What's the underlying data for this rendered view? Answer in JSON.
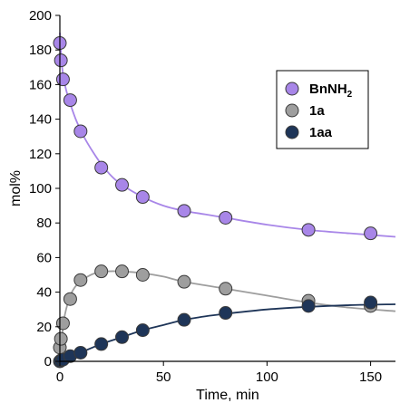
{
  "chart_data": {
    "type": "scatter",
    "xlabel": "Time, min",
    "ylabel": "mol%",
    "xlim": [
      0,
      162
    ],
    "ylim": [
      0,
      200
    ],
    "xticks": [
      0,
      50,
      100,
      150
    ],
    "yticks": [
      0,
      20,
      40,
      60,
      80,
      100,
      120,
      140,
      160,
      180,
      200
    ],
    "grid": false,
    "legend_position": "top-right",
    "series": [
      {
        "name": "BnNH2",
        "label_main": "BnNH",
        "label_sub": "2",
        "color": "#a886e8",
        "x": [
          0,
          0.5,
          1.5,
          5,
          10,
          20,
          30,
          40,
          60,
          80,
          120,
          150
        ],
        "y": [
          184,
          174,
          163,
          151,
          133,
          112,
          102,
          95,
          87,
          83,
          76,
          74
        ],
        "fit": [
          [
            0,
            190
          ],
          [
            1,
            171
          ],
          [
            2,
            163
          ],
          [
            3,
            157
          ],
          [
            5,
            149
          ],
          [
            8,
            139
          ],
          [
            12,
            129
          ],
          [
            16,
            121
          ],
          [
            20,
            114
          ],
          [
            25,
            107
          ],
          [
            30,
            102
          ],
          [
            40,
            95
          ],
          [
            50,
            90
          ],
          [
            60,
            87
          ],
          [
            70,
            85
          ],
          [
            80,
            83
          ],
          [
            100,
            79
          ],
          [
            120,
            76
          ],
          [
            140,
            74
          ],
          [
            162,
            72
          ]
        ]
      },
      {
        "name": "1a",
        "label_main": "1a",
        "label_sub": "",
        "color": "#9e9e9e",
        "x": [
          0,
          0.5,
          1.5,
          5,
          10,
          20,
          30,
          40,
          60,
          80,
          120,
          150
        ],
        "y": [
          8,
          13,
          22,
          36,
          47,
          52,
          52,
          50,
          46,
          42,
          35,
          32
        ],
        "fit": [
          [
            0,
            0
          ],
          [
            1,
            14
          ],
          [
            2,
            24
          ],
          [
            3,
            30
          ],
          [
            5,
            38
          ],
          [
            8,
            44
          ],
          [
            12,
            48
          ],
          [
            17,
            51
          ],
          [
            22,
            52
          ],
          [
            30,
            52
          ],
          [
            40,
            51
          ],
          [
            50,
            49
          ],
          [
            60,
            46
          ],
          [
            80,
            42
          ],
          [
            100,
            38
          ],
          [
            120,
            34
          ],
          [
            140,
            31
          ],
          [
            162,
            29
          ]
        ]
      },
      {
        "name": "1aa",
        "label_main": "1aa",
        "label_sub": "",
        "color": "#1e3558",
        "x": [
          0,
          0.5,
          1.5,
          5,
          10,
          20,
          30,
          40,
          60,
          80,
          120,
          150
        ],
        "y": [
          0,
          0.5,
          1,
          3,
          5,
          10,
          14,
          18,
          24,
          28,
          32,
          34
        ],
        "fit": [
          [
            0,
            0
          ],
          [
            5,
            2
          ],
          [
            10,
            5
          ],
          [
            20,
            10
          ],
          [
            30,
            14
          ],
          [
            40,
            18
          ],
          [
            50,
            21
          ],
          [
            60,
            24
          ],
          [
            70,
            26
          ],
          [
            80,
            27.5
          ],
          [
            100,
            30
          ],
          [
            120,
            31.5
          ],
          [
            140,
            32.5
          ],
          [
            162,
            33
          ]
        ]
      }
    ]
  }
}
